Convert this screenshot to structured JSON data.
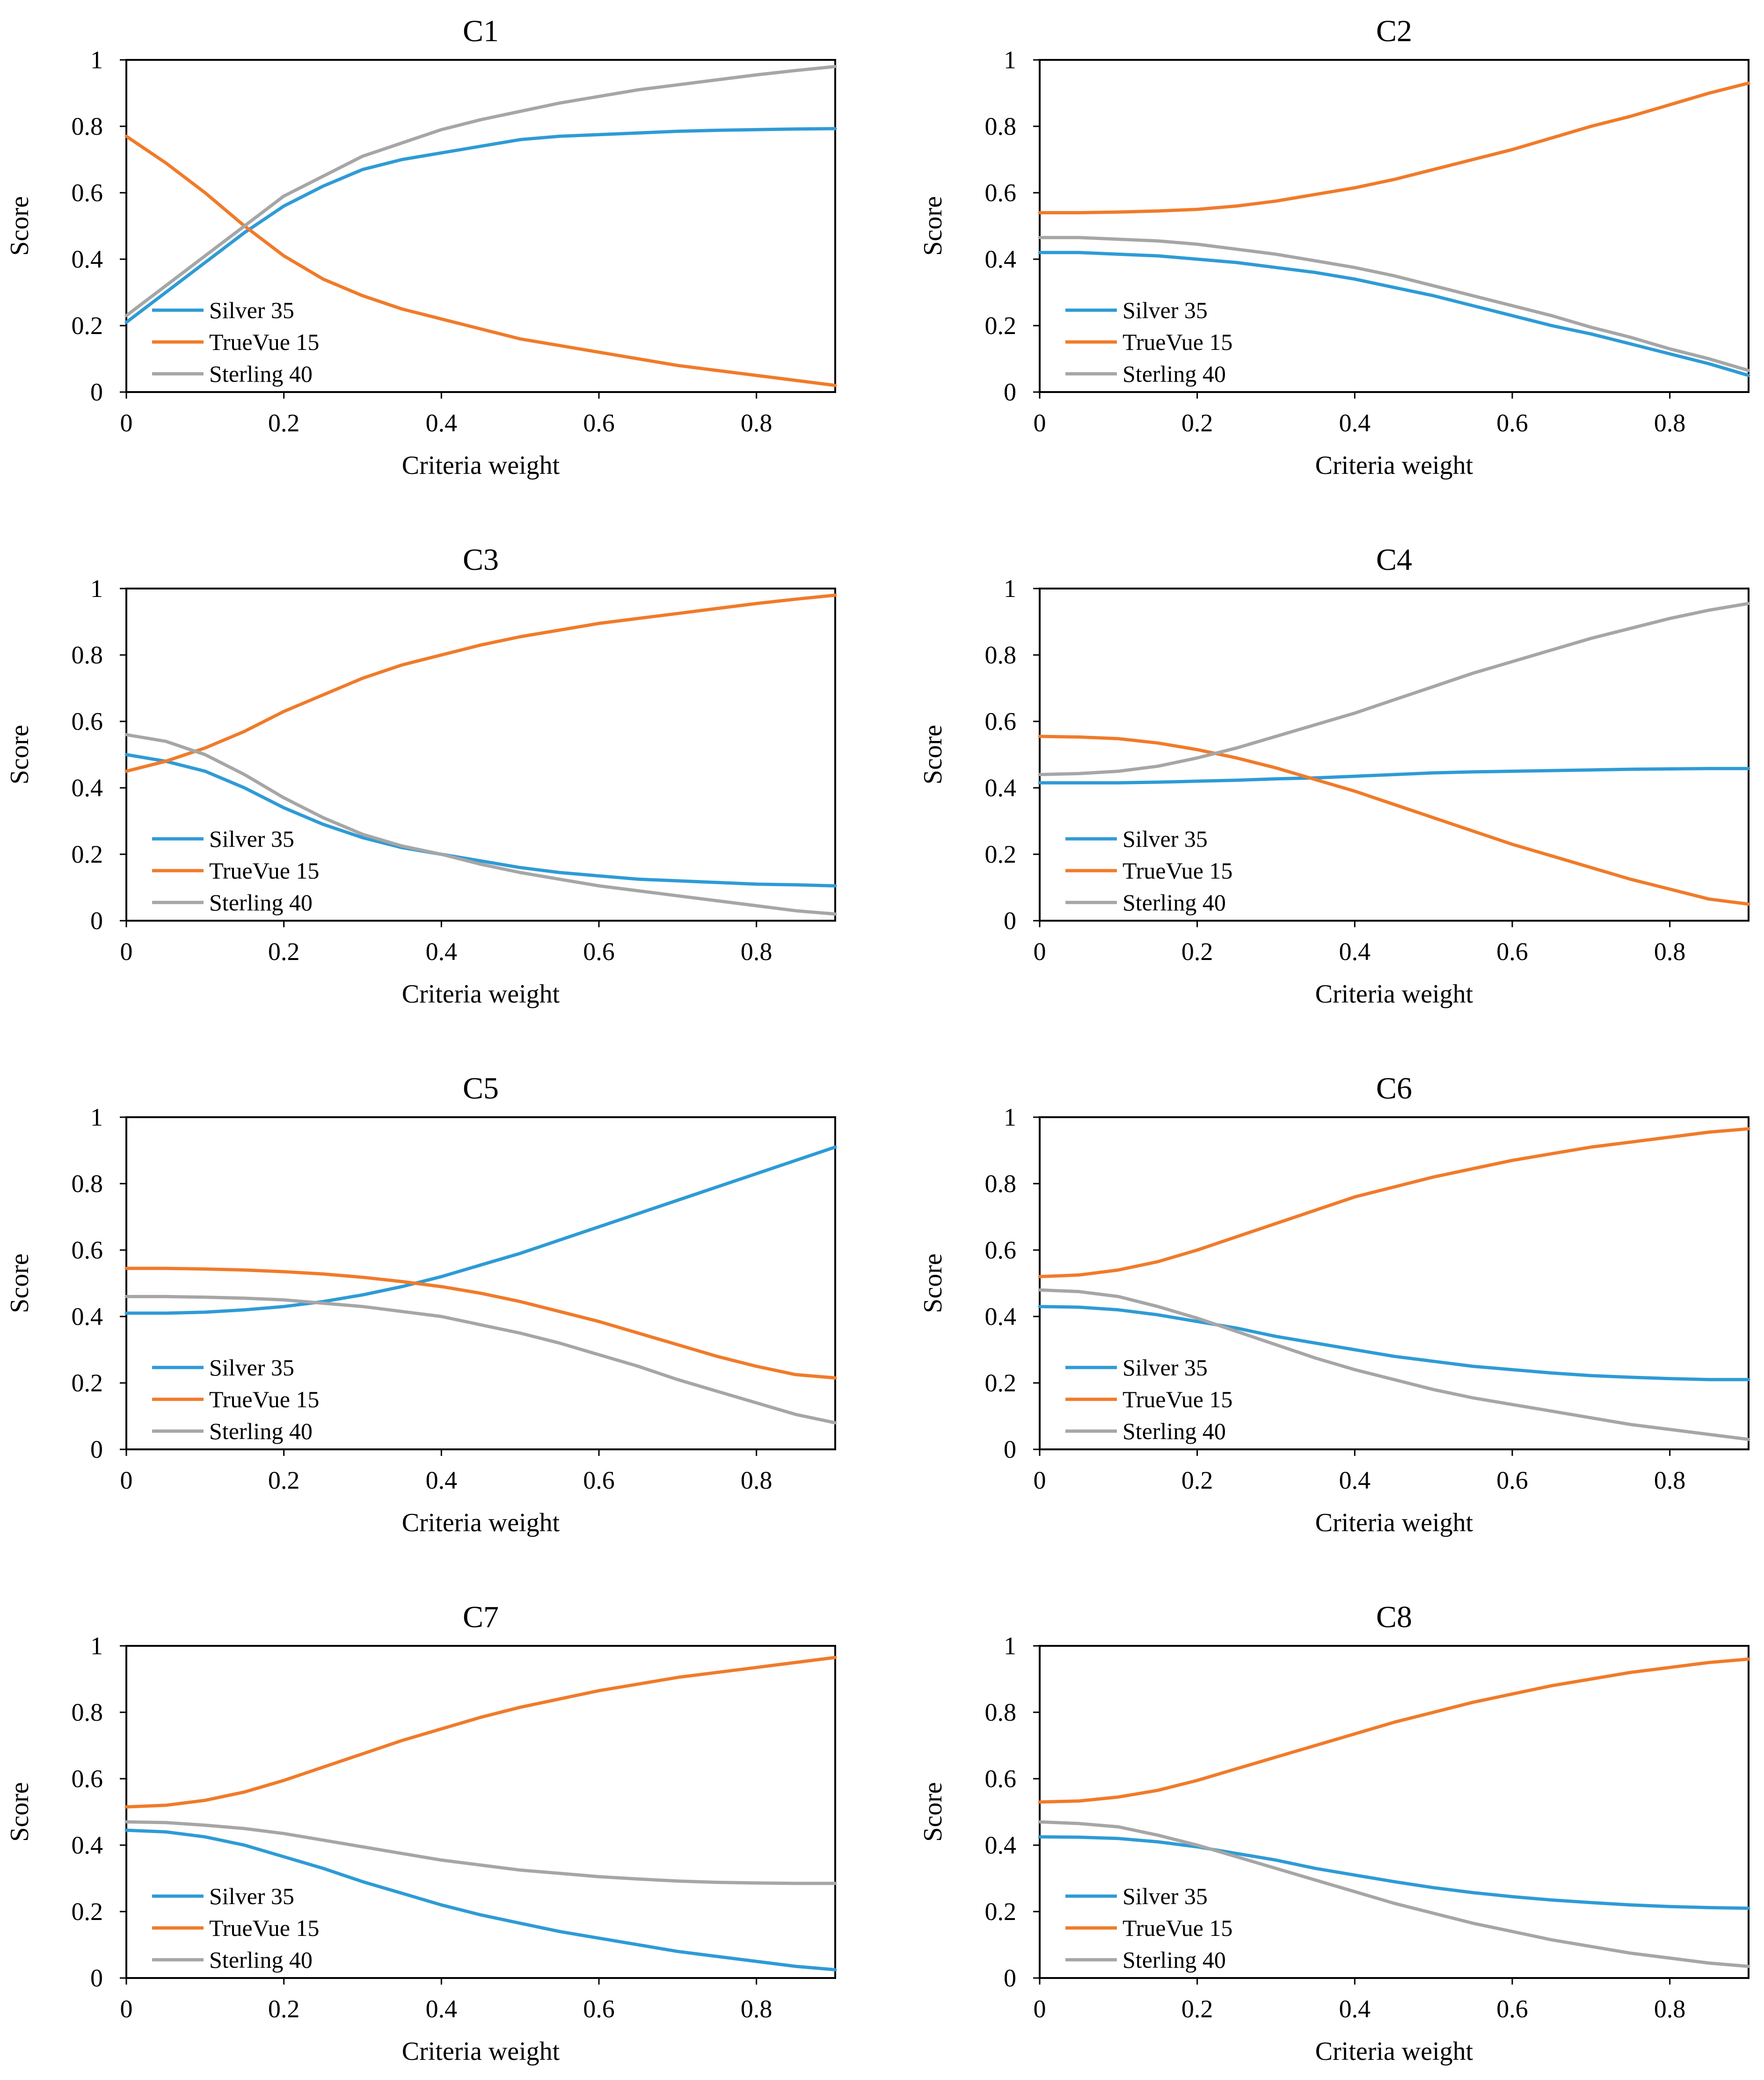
{
  "chart_data": [
    {
      "type": "line",
      "title": "C1",
      "xlabel": "Criteria weight",
      "ylabel": "Score",
      "xlim": [
        0,
        0.9
      ],
      "ylim": [
        0,
        1
      ],
      "xticks": [
        "0",
        "0.2",
        "0.4",
        "0.6",
        "0.8"
      ],
      "yticks": [
        "0",
        "0.2",
        "0.4",
        "0.6",
        "0.8",
        "1"
      ],
      "legend_position": "lower-left",
      "x": [
        0,
        0.05,
        0.1,
        0.15,
        0.2,
        0.25,
        0.3,
        0.35,
        0.4,
        0.45,
        0.5,
        0.55,
        0.6,
        0.65,
        0.7,
        0.75,
        0.8,
        0.85,
        0.9
      ],
      "series": [
        {
          "name": "Silver 35",
          "color": "#2E9BD6",
          "values": [
            0.21,
            0.3,
            0.39,
            0.48,
            0.56,
            0.62,
            0.67,
            0.7,
            0.72,
            0.74,
            0.76,
            0.77,
            0.775,
            0.78,
            0.785,
            0.788,
            0.79,
            0.792,
            0.793
          ]
        },
        {
          "name": "TrueVue 15",
          "color": "#F07B2A",
          "values": [
            0.77,
            0.69,
            0.6,
            0.5,
            0.41,
            0.34,
            0.29,
            0.25,
            0.22,
            0.19,
            0.16,
            0.14,
            0.12,
            0.1,
            0.08,
            0.065,
            0.05,
            0.035,
            0.02
          ]
        },
        {
          "name": "Sterling 40",
          "color": "#A6A6A6",
          "values": [
            0.23,
            0.32,
            0.41,
            0.5,
            0.59,
            0.65,
            0.71,
            0.75,
            0.79,
            0.82,
            0.845,
            0.87,
            0.89,
            0.91,
            0.925,
            0.94,
            0.955,
            0.968,
            0.98
          ]
        }
      ]
    },
    {
      "type": "line",
      "title": "C2",
      "xlabel": "Criteria weight",
      "ylabel": "Score",
      "xlim": [
        0,
        0.9
      ],
      "ylim": [
        0,
        1
      ],
      "xticks": [
        "0",
        "0.2",
        "0.4",
        "0.6",
        "0.8"
      ],
      "yticks": [
        "0",
        "0.2",
        "0.4",
        "0.6",
        "0.8",
        "1"
      ],
      "legend_position": "lower-left",
      "x": [
        0,
        0.05,
        0.1,
        0.15,
        0.2,
        0.25,
        0.3,
        0.35,
        0.4,
        0.45,
        0.5,
        0.55,
        0.6,
        0.65,
        0.7,
        0.75,
        0.8,
        0.85,
        0.9
      ],
      "series": [
        {
          "name": "Silver 35",
          "color": "#2E9BD6",
          "values": [
            0.42,
            0.42,
            0.415,
            0.41,
            0.4,
            0.39,
            0.375,
            0.36,
            0.34,
            0.315,
            0.29,
            0.26,
            0.23,
            0.2,
            0.175,
            0.145,
            0.115,
            0.085,
            0.05
          ]
        },
        {
          "name": "TrueVue 15",
          "color": "#F07B2A",
          "values": [
            0.54,
            0.54,
            0.542,
            0.545,
            0.55,
            0.56,
            0.575,
            0.595,
            0.615,
            0.64,
            0.67,
            0.7,
            0.73,
            0.765,
            0.8,
            0.83,
            0.865,
            0.9,
            0.93
          ]
        },
        {
          "name": "Sterling 40",
          "color": "#A6A6A6",
          "values": [
            0.465,
            0.465,
            0.46,
            0.455,
            0.445,
            0.43,
            0.415,
            0.395,
            0.375,
            0.35,
            0.32,
            0.29,
            0.26,
            0.23,
            0.195,
            0.165,
            0.13,
            0.1,
            0.065
          ]
        }
      ]
    },
    {
      "type": "line",
      "title": "C3",
      "xlabel": "Criteria weight",
      "ylabel": "Score",
      "xlim": [
        0,
        0.9
      ],
      "ylim": [
        0,
        1
      ],
      "xticks": [
        "0",
        "0.2",
        "0.4",
        "0.6",
        "0.8"
      ],
      "yticks": [
        "0",
        "0.2",
        "0.4",
        "0.6",
        "0.8",
        "1"
      ],
      "legend_position": "lower-left",
      "x": [
        0,
        0.05,
        0.1,
        0.15,
        0.2,
        0.25,
        0.3,
        0.35,
        0.4,
        0.45,
        0.5,
        0.55,
        0.6,
        0.65,
        0.7,
        0.75,
        0.8,
        0.85,
        0.9
      ],
      "series": [
        {
          "name": "Silver 35",
          "color": "#2E9BD6",
          "values": [
            0.5,
            0.48,
            0.45,
            0.4,
            0.34,
            0.29,
            0.25,
            0.22,
            0.2,
            0.18,
            0.16,
            0.145,
            0.135,
            0.125,
            0.12,
            0.115,
            0.11,
            0.108,
            0.105
          ]
        },
        {
          "name": "TrueVue 15",
          "color": "#F07B2A",
          "values": [
            0.45,
            0.48,
            0.52,
            0.57,
            0.63,
            0.68,
            0.73,
            0.77,
            0.8,
            0.83,
            0.855,
            0.875,
            0.895,
            0.91,
            0.925,
            0.94,
            0.955,
            0.968,
            0.98
          ]
        },
        {
          "name": "Sterling 40",
          "color": "#A6A6A6",
          "values": [
            0.56,
            0.54,
            0.5,
            0.44,
            0.37,
            0.31,
            0.26,
            0.225,
            0.2,
            0.17,
            0.145,
            0.125,
            0.105,
            0.09,
            0.075,
            0.06,
            0.045,
            0.03,
            0.02
          ]
        }
      ]
    },
    {
      "type": "line",
      "title": "C4",
      "xlabel": "Criteria weight",
      "ylabel": "Score",
      "xlim": [
        0,
        0.9
      ],
      "ylim": [
        0,
        1
      ],
      "xticks": [
        "0",
        "0.2",
        "0.4",
        "0.6",
        "0.8"
      ],
      "yticks": [
        "0",
        "0.2",
        "0.4",
        "0.6",
        "0.8",
        "1"
      ],
      "legend_position": "lower-left",
      "x": [
        0,
        0.05,
        0.1,
        0.15,
        0.2,
        0.25,
        0.3,
        0.35,
        0.4,
        0.45,
        0.5,
        0.55,
        0.6,
        0.65,
        0.7,
        0.75,
        0.8,
        0.85,
        0.9
      ],
      "series": [
        {
          "name": "Silver 35",
          "color": "#2E9BD6",
          "values": [
            0.415,
            0.415,
            0.415,
            0.417,
            0.42,
            0.423,
            0.427,
            0.43,
            0.435,
            0.44,
            0.445,
            0.448,
            0.45,
            0.452,
            0.454,
            0.456,
            0.457,
            0.458,
            0.458
          ]
        },
        {
          "name": "TrueVue 15",
          "color": "#F07B2A",
          "values": [
            0.555,
            0.553,
            0.548,
            0.535,
            0.515,
            0.49,
            0.46,
            0.425,
            0.39,
            0.35,
            0.31,
            0.27,
            0.23,
            0.195,
            0.16,
            0.125,
            0.095,
            0.065,
            0.05
          ]
        },
        {
          "name": "Sterling 40",
          "color": "#A6A6A6",
          "values": [
            0.44,
            0.443,
            0.45,
            0.465,
            0.49,
            0.52,
            0.555,
            0.59,
            0.625,
            0.665,
            0.705,
            0.745,
            0.78,
            0.815,
            0.85,
            0.88,
            0.91,
            0.935,
            0.955
          ]
        }
      ]
    },
    {
      "type": "line",
      "title": "C5",
      "xlabel": "Criteria weight",
      "ylabel": "Score",
      "xlim": [
        0,
        0.9
      ],
      "ylim": [
        0,
        1
      ],
      "xticks": [
        "0",
        "0.2",
        "0.4",
        "0.6",
        "0.8"
      ],
      "yticks": [
        "0",
        "0.2",
        "0.4",
        "0.6",
        "0.8",
        "1"
      ],
      "legend_position": "lower-left",
      "x": [
        0,
        0.05,
        0.1,
        0.15,
        0.2,
        0.25,
        0.3,
        0.35,
        0.4,
        0.45,
        0.5,
        0.55,
        0.6,
        0.65,
        0.7,
        0.75,
        0.8,
        0.85,
        0.9
      ],
      "series": [
        {
          "name": "Silver 35",
          "color": "#2E9BD6",
          "values": [
            0.41,
            0.41,
            0.413,
            0.42,
            0.43,
            0.445,
            0.465,
            0.49,
            0.52,
            0.555,
            0.59,
            0.63,
            0.67,
            0.71,
            0.75,
            0.79,
            0.83,
            0.87,
            0.91
          ]
        },
        {
          "name": "TrueVue 15",
          "color": "#F07B2A",
          "values": [
            0.545,
            0.545,
            0.543,
            0.54,
            0.535,
            0.528,
            0.518,
            0.505,
            0.49,
            0.47,
            0.445,
            0.415,
            0.385,
            0.35,
            0.315,
            0.28,
            0.25,
            0.225,
            0.215
          ]
        },
        {
          "name": "Sterling 40",
          "color": "#A6A6A6",
          "values": [
            0.46,
            0.46,
            0.458,
            0.455,
            0.45,
            0.44,
            0.43,
            0.415,
            0.4,
            0.375,
            0.35,
            0.32,
            0.285,
            0.25,
            0.21,
            0.175,
            0.14,
            0.105,
            0.08
          ]
        }
      ]
    },
    {
      "type": "line",
      "title": "C6",
      "xlabel": "Criteria weight",
      "ylabel": "Score",
      "xlim": [
        0,
        0.9
      ],
      "ylim": [
        0,
        1
      ],
      "xticks": [
        "0",
        "0.2",
        "0.4",
        "0.6",
        "0.8"
      ],
      "yticks": [
        "0",
        "0.2",
        "0.4",
        "0.6",
        "0.8",
        "1"
      ],
      "legend_position": "lower-left",
      "x": [
        0,
        0.05,
        0.1,
        0.15,
        0.2,
        0.25,
        0.3,
        0.35,
        0.4,
        0.45,
        0.5,
        0.55,
        0.6,
        0.65,
        0.7,
        0.75,
        0.8,
        0.85,
        0.9
      ],
      "series": [
        {
          "name": "Silver 35",
          "color": "#2E9BD6",
          "values": [
            0.43,
            0.428,
            0.42,
            0.405,
            0.385,
            0.365,
            0.34,
            0.32,
            0.3,
            0.28,
            0.265,
            0.25,
            0.24,
            0.23,
            0.222,
            0.217,
            0.213,
            0.21,
            0.21
          ]
        },
        {
          "name": "TrueVue 15",
          "color": "#F07B2A",
          "values": [
            0.52,
            0.525,
            0.54,
            0.565,
            0.6,
            0.64,
            0.68,
            0.72,
            0.76,
            0.79,
            0.82,
            0.845,
            0.87,
            0.89,
            0.91,
            0.925,
            0.94,
            0.955,
            0.965
          ]
        },
        {
          "name": "Sterling 40",
          "color": "#A6A6A6",
          "values": [
            0.48,
            0.475,
            0.46,
            0.43,
            0.395,
            0.355,
            0.315,
            0.275,
            0.24,
            0.21,
            0.18,
            0.155,
            0.135,
            0.115,
            0.095,
            0.075,
            0.06,
            0.045,
            0.03
          ]
        }
      ]
    },
    {
      "type": "line",
      "title": "C7",
      "xlabel": "Criteria weight",
      "ylabel": "Score",
      "xlim": [
        0,
        0.9
      ],
      "ylim": [
        0,
        1
      ],
      "xticks": [
        "0",
        "0.2",
        "0.4",
        "0.6",
        "0.8"
      ],
      "yticks": [
        "0",
        "0.2",
        "0.4",
        "0.6",
        "0.8",
        "1"
      ],
      "legend_position": "lower-left",
      "x": [
        0,
        0.05,
        0.1,
        0.15,
        0.2,
        0.25,
        0.3,
        0.35,
        0.4,
        0.45,
        0.5,
        0.55,
        0.6,
        0.65,
        0.7,
        0.75,
        0.8,
        0.85,
        0.9
      ],
      "series": [
        {
          "name": "Silver 35",
          "color": "#2E9BD6",
          "values": [
            0.445,
            0.44,
            0.425,
            0.4,
            0.365,
            0.33,
            0.29,
            0.255,
            0.22,
            0.19,
            0.165,
            0.14,
            0.12,
            0.1,
            0.08,
            0.065,
            0.05,
            0.035,
            0.025
          ]
        },
        {
          "name": "TrueVue 15",
          "color": "#F07B2A",
          "values": [
            0.515,
            0.52,
            0.535,
            0.56,
            0.595,
            0.635,
            0.675,
            0.715,
            0.75,
            0.785,
            0.815,
            0.84,
            0.865,
            0.885,
            0.905,
            0.92,
            0.935,
            0.95,
            0.965
          ]
        },
        {
          "name": "Sterling 40",
          "color": "#A6A6A6",
          "values": [
            0.47,
            0.468,
            0.46,
            0.45,
            0.435,
            0.415,
            0.395,
            0.375,
            0.355,
            0.34,
            0.325,
            0.315,
            0.305,
            0.298,
            0.292,
            0.288,
            0.286,
            0.285,
            0.285
          ]
        }
      ]
    },
    {
      "type": "line",
      "title": "C8",
      "xlabel": "Criteria weight",
      "ylabel": "Score",
      "xlim": [
        0,
        0.9
      ],
      "ylim": [
        0,
        1
      ],
      "xticks": [
        "0",
        "0.2",
        "0.4",
        "0.6",
        "0.8"
      ],
      "yticks": [
        "0",
        "0.2",
        "0.4",
        "0.6",
        "0.8",
        "1"
      ],
      "legend_position": "lower-left",
      "x": [
        0,
        0.05,
        0.1,
        0.15,
        0.2,
        0.25,
        0.3,
        0.35,
        0.4,
        0.45,
        0.5,
        0.55,
        0.6,
        0.65,
        0.7,
        0.75,
        0.8,
        0.85,
        0.9
      ],
      "series": [
        {
          "name": "Silver 35",
          "color": "#2E9BD6",
          "values": [
            0.425,
            0.424,
            0.42,
            0.41,
            0.395,
            0.375,
            0.355,
            0.33,
            0.31,
            0.29,
            0.272,
            0.257,
            0.245,
            0.235,
            0.227,
            0.22,
            0.215,
            0.212,
            0.21
          ]
        },
        {
          "name": "TrueVue 15",
          "color": "#F07B2A",
          "values": [
            0.53,
            0.533,
            0.545,
            0.565,
            0.595,
            0.63,
            0.665,
            0.7,
            0.735,
            0.77,
            0.8,
            0.83,
            0.855,
            0.88,
            0.9,
            0.92,
            0.935,
            0.95,
            0.96
          ]
        },
        {
          "name": "Sterling 40",
          "color": "#A6A6A6",
          "values": [
            0.47,
            0.465,
            0.455,
            0.43,
            0.4,
            0.365,
            0.33,
            0.295,
            0.26,
            0.225,
            0.195,
            0.165,
            0.14,
            0.115,
            0.095,
            0.075,
            0.06,
            0.045,
            0.035
          ]
        }
      ]
    }
  ]
}
